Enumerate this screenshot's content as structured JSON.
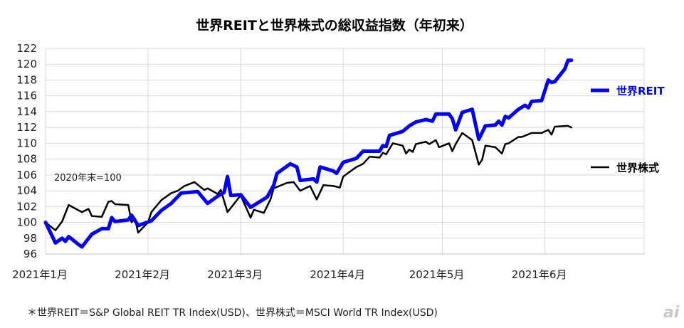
{
  "chart_data": {
    "type": "line",
    "title": "世界REITと世界株式の総収益指数（年初来）",
    "xlabel": "",
    "ylabel": "",
    "ylim": [
      96,
      122
    ],
    "yticks": [
      96,
      98,
      100,
      102,
      104,
      106,
      108,
      110,
      112,
      114,
      116,
      118,
      120,
      122
    ],
    "xlim": [
      "2021-01-01",
      "2021-07-01"
    ],
    "xticks": [
      {
        "date": "2021-01-01",
        "label": "2021年1月"
      },
      {
        "date": "2021-02-01",
        "label": "2021年2月"
      },
      {
        "date": "2021-03-01",
        "label": "2021年3月"
      },
      {
        "date": "2021-04-01",
        "label": "2021年4月"
      },
      {
        "date": "2021-05-01",
        "label": "2021年5月"
      },
      {
        "date": "2021-06-01",
        "label": "2021年6月"
      }
    ],
    "grid": true,
    "legend_position": "right",
    "annotation": "2020年末=100",
    "footnote": "＊世界REIT＝S&P Global REIT TR Index(USD)、世界株式＝MSCI World TR Index(USD)",
    "logo_text": "ai",
    "series": [
      {
        "name": "世界REIT",
        "color": "#0000ff",
        "points": [
          [
            "2021-01-01",
            100.0
          ],
          [
            "2021-01-04",
            97.4
          ],
          [
            "2021-01-06",
            98.0
          ],
          [
            "2021-01-07",
            97.6
          ],
          [
            "2021-01-08",
            98.2
          ],
          [
            "2021-01-11",
            97.2
          ],
          [
            "2021-01-12",
            96.9
          ],
          [
            "2021-01-15",
            98.5
          ],
          [
            "2021-01-18",
            99.2
          ],
          [
            "2021-01-20",
            99.2
          ],
          [
            "2021-01-21",
            100.6
          ],
          [
            "2021-01-22",
            100.1
          ],
          [
            "2021-01-26",
            100.3
          ],
          [
            "2021-01-27",
            100.9
          ],
          [
            "2021-01-29",
            99.6
          ],
          [
            "2021-02-02",
            100.2
          ],
          [
            "2021-02-05",
            101.5
          ],
          [
            "2021-02-08",
            102.4
          ],
          [
            "2021-02-11",
            103.7
          ],
          [
            "2021-02-16",
            103.9
          ],
          [
            "2021-02-19",
            102.4
          ],
          [
            "2021-02-22",
            103.3
          ],
          [
            "2021-02-24",
            103.8
          ],
          [
            "2021-02-25",
            105.8
          ],
          [
            "2021-02-26",
            103.4
          ],
          [
            "2021-03-01",
            103.5
          ],
          [
            "2021-03-04",
            101.9
          ],
          [
            "2021-03-09",
            103.2
          ],
          [
            "2021-03-11",
            104.7
          ],
          [
            "2021-03-12",
            106.2
          ],
          [
            "2021-03-16",
            107.4
          ],
          [
            "2021-03-18",
            107.0
          ],
          [
            "2021-03-19",
            105.3
          ],
          [
            "2021-03-23",
            105.5
          ],
          [
            "2021-03-24",
            105.1
          ],
          [
            "2021-03-25",
            107.0
          ],
          [
            "2021-03-29",
            106.5
          ],
          [
            "2021-03-30",
            106.2
          ],
          [
            "2021-04-01",
            107.6
          ],
          [
            "2021-04-05",
            108.1
          ],
          [
            "2021-04-07",
            109.0
          ],
          [
            "2021-04-12",
            109.0
          ],
          [
            "2021-04-13",
            109.7
          ],
          [
            "2021-04-14",
            109.6
          ],
          [
            "2021-04-15",
            111.0
          ],
          [
            "2021-04-19",
            111.5
          ],
          [
            "2021-04-21",
            112.2
          ],
          [
            "2021-04-23",
            112.7
          ],
          [
            "2021-04-26",
            113.0
          ],
          [
            "2021-04-28",
            112.8
          ],
          [
            "2021-04-29",
            113.7
          ],
          [
            "2021-05-03",
            113.7
          ],
          [
            "2021-05-04",
            113.1
          ],
          [
            "2021-05-05",
            111.7
          ],
          [
            "2021-05-07",
            113.9
          ],
          [
            "2021-05-10",
            114.3
          ],
          [
            "2021-05-12",
            110.5
          ],
          [
            "2021-05-14",
            112.2
          ],
          [
            "2021-05-17",
            112.3
          ],
          [
            "2021-05-18",
            112.8
          ],
          [
            "2021-05-19",
            112.3
          ],
          [
            "2021-05-20",
            113.4
          ],
          [
            "2021-05-21",
            113.2
          ],
          [
            "2021-05-24",
            114.3
          ],
          [
            "2021-05-26",
            114.8
          ],
          [
            "2021-05-27",
            114.5
          ],
          [
            "2021-05-28",
            115.3
          ],
          [
            "2021-05-31",
            115.4
          ],
          [
            "2021-06-02",
            118.0
          ],
          [
            "2021-06-03",
            117.7
          ],
          [
            "2021-06-04",
            117.8
          ],
          [
            "2021-06-07",
            119.4
          ],
          [
            "2021-06-08",
            120.5
          ],
          [
            "2021-06-09",
            120.5
          ]
        ]
      },
      {
        "name": "世界株式",
        "color": "#000000",
        "points": [
          [
            "2021-01-01",
            100.0
          ],
          [
            "2021-01-04",
            99.0
          ],
          [
            "2021-01-06",
            100.1
          ],
          [
            "2021-01-08",
            102.2
          ],
          [
            "2021-01-12",
            101.3
          ],
          [
            "2021-01-14",
            101.7
          ],
          [
            "2021-01-15",
            100.8
          ],
          [
            "2021-01-18",
            100.7
          ],
          [
            "2021-01-20",
            102.6
          ],
          [
            "2021-01-21",
            102.7
          ],
          [
            "2021-01-22",
            102.3
          ],
          [
            "2021-01-26",
            102.2
          ],
          [
            "2021-01-27",
            100.0
          ],
          [
            "2021-01-28",
            100.5
          ],
          [
            "2021-01-29",
            98.7
          ],
          [
            "2021-02-01",
            100.0
          ],
          [
            "2021-02-02",
            101.3
          ],
          [
            "2021-02-03",
            101.8
          ],
          [
            "2021-02-05",
            102.8
          ],
          [
            "2021-02-08",
            103.7
          ],
          [
            "2021-02-10",
            104.0
          ],
          [
            "2021-02-12",
            104.6
          ],
          [
            "2021-02-15",
            105.1
          ],
          [
            "2021-02-18",
            104.1
          ],
          [
            "2021-02-19",
            104.3
          ],
          [
            "2021-02-22",
            103.6
          ],
          [
            "2021-02-23",
            104.1
          ],
          [
            "2021-02-25",
            101.3
          ],
          [
            "2021-03-01",
            103.4
          ],
          [
            "2021-03-04",
            100.6
          ],
          [
            "2021-03-05",
            101.6
          ],
          [
            "2021-03-08",
            101.2
          ],
          [
            "2021-03-10",
            102.9
          ],
          [
            "2021-03-11",
            104.3
          ],
          [
            "2021-03-15",
            105.0
          ],
          [
            "2021-03-17",
            105.1
          ],
          [
            "2021-03-19",
            104.0
          ],
          [
            "2021-03-22",
            104.6
          ],
          [
            "2021-03-24",
            102.9
          ],
          [
            "2021-03-26",
            104.7
          ],
          [
            "2021-03-29",
            104.6
          ],
          [
            "2021-03-31",
            104.4
          ],
          [
            "2021-04-01",
            105.8
          ],
          [
            "2021-04-05",
            107.0
          ],
          [
            "2021-04-07",
            107.4
          ],
          [
            "2021-04-09",
            108.3
          ],
          [
            "2021-04-12",
            108.2
          ],
          [
            "2021-04-13",
            108.8
          ],
          [
            "2021-04-14",
            108.6
          ],
          [
            "2021-04-16",
            110.0
          ],
          [
            "2021-04-19",
            109.7
          ],
          [
            "2021-04-20",
            108.7
          ],
          [
            "2021-04-21",
            109.2
          ],
          [
            "2021-04-22",
            108.9
          ],
          [
            "2021-04-23",
            109.9
          ],
          [
            "2021-04-26",
            110.2
          ],
          [
            "2021-04-27",
            109.9
          ],
          [
            "2021-04-29",
            110.4
          ],
          [
            "2021-04-30",
            109.5
          ],
          [
            "2021-05-03",
            110.0
          ],
          [
            "2021-05-04",
            109.0
          ],
          [
            "2021-05-05",
            109.9
          ],
          [
            "2021-05-07",
            111.3
          ],
          [
            "2021-05-10",
            110.4
          ],
          [
            "2021-05-12",
            107.3
          ],
          [
            "2021-05-13",
            107.9
          ],
          [
            "2021-05-14",
            109.7
          ],
          [
            "2021-05-17",
            109.5
          ],
          [
            "2021-05-19",
            108.7
          ],
          [
            "2021-05-20",
            109.9
          ],
          [
            "2021-05-21",
            110.0
          ],
          [
            "2021-05-24",
            110.8
          ],
          [
            "2021-05-25",
            110.8
          ],
          [
            "2021-05-28",
            111.3
          ],
          [
            "2021-05-31",
            111.3
          ],
          [
            "2021-06-02",
            111.7
          ],
          [
            "2021-06-03",
            111.1
          ],
          [
            "2021-06-04",
            112.1
          ],
          [
            "2021-06-08",
            112.2
          ],
          [
            "2021-06-09",
            112.0
          ]
        ]
      }
    ]
  }
}
